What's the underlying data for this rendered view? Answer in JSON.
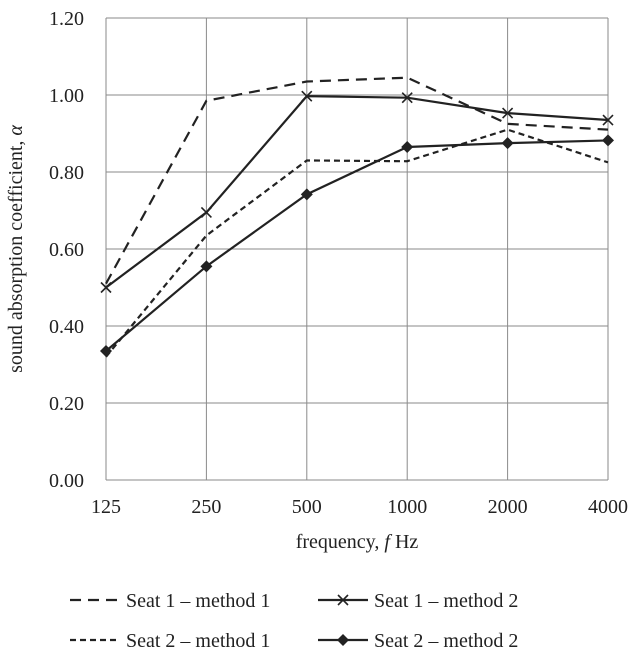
{
  "chart_data": {
    "type": "line",
    "title": "",
    "xlabel_parts": [
      "frequency, ",
      "f",
      " Hz"
    ],
    "ylabel_parts": [
      "sound absorption coefficient, ",
      "α"
    ],
    "categories": [
      "125",
      "250",
      "500",
      "1000",
      "2000",
      "4000"
    ],
    "ylim": [
      0,
      1.2
    ],
    "yticks": [
      "0.00",
      "0.20",
      "0.40",
      "0.60",
      "0.80",
      "1.00",
      "1.20"
    ],
    "grid": true,
    "legend_position": "bottom",
    "series": [
      {
        "name": "Seat 1 – method 1",
        "values": [
          0.51,
          0.985,
          1.035,
          1.045,
          0.925,
          0.91
        ],
        "line": "long-dash",
        "marker": "none",
        "color": "#222222"
      },
      {
        "name": "Seat 1 – method 2",
        "values": [
          0.5,
          0.695,
          0.997,
          0.993,
          0.953,
          0.935
        ],
        "line": "solid",
        "marker": "x",
        "color": "#222222"
      },
      {
        "name": "Seat 2 – method 1",
        "values": [
          0.32,
          0.635,
          0.83,
          0.828,
          0.91,
          0.825
        ],
        "line": "short-dash",
        "marker": "none",
        "color": "#222222"
      },
      {
        "name": "Seat 2 – method 2",
        "values": [
          0.335,
          0.555,
          0.742,
          0.865,
          0.875,
          0.882
        ],
        "line": "solid",
        "marker": "diamond",
        "color": "#222222"
      }
    ]
  }
}
